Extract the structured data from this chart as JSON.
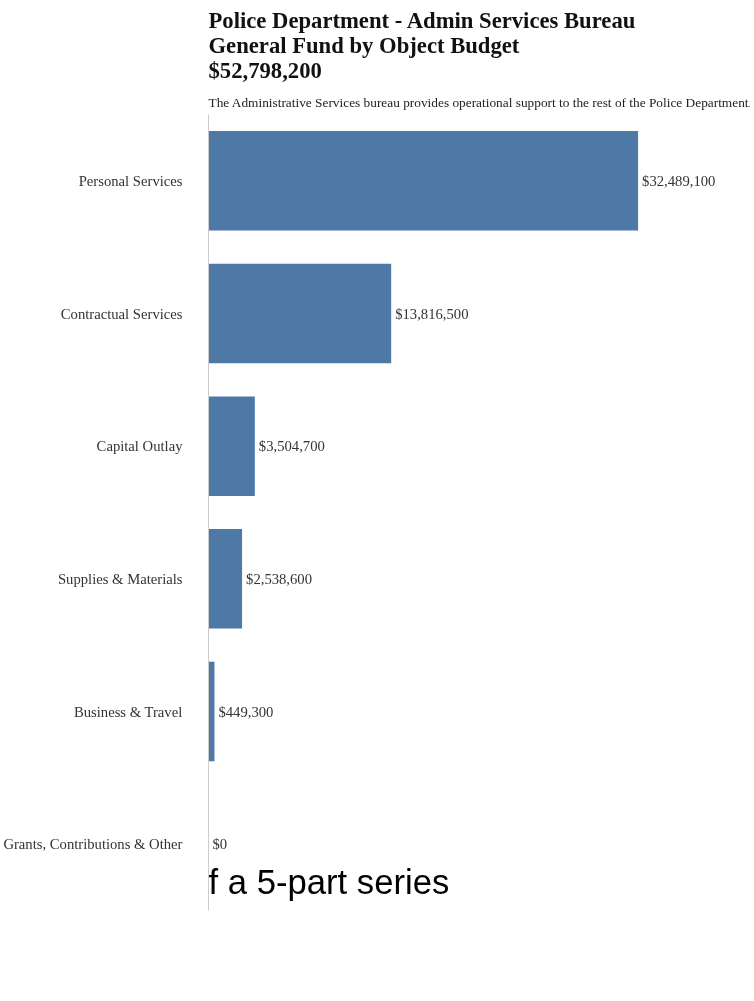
{
  "chart_data": {
    "type": "bar",
    "orientation": "horizontal",
    "title": "Police Department - Admin Services Bureau\nGeneral Fund by Object Budget\n$52,798,200",
    "subtitle": "The Administrative Services bureau provides operational support to the rest of the Police Department.",
    "categories": [
      "Personal Services",
      "Contractual Services",
      "Capital Outlay",
      "Supplies & Materials",
      "Business & Travel",
      "Grants, Contributions & Other"
    ],
    "values": [
      32489100,
      13816500,
      3504700,
      2538600,
      449300,
      0
    ],
    "value_labels": [
      "$32,489,100",
      "$13,816,500",
      "$3,504,700",
      "$2,538,600",
      "$449,300",
      "$0"
    ],
    "color": "#4e79a7",
    "grid": false,
    "tick_labels": "y",
    "annotations": [
      "f a 5-part series"
    ]
  }
}
